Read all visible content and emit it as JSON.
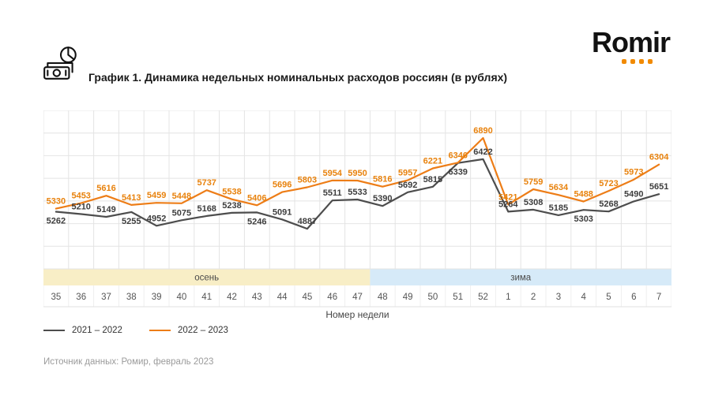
{
  "header": {
    "title": "График 1. Динамика недельных номинальных расходов россиян (в рублях)",
    "logo_text": "Romir",
    "logo_dot_color": "#F18A00"
  },
  "chart_data": {
    "type": "line",
    "title": "Динамика недельных номинальных расходов россиян (в рублях)",
    "x_label": "Номер недели",
    "categories": [
      "35",
      "36",
      "37",
      "38",
      "39",
      "40",
      "41",
      "42",
      "43",
      "44",
      "45",
      "46",
      "47",
      "48",
      "49",
      "50",
      "51",
      "52",
      "1",
      "2",
      "3",
      "4",
      "5",
      "6",
      "7"
    ],
    "series": [
      {
        "name": "2021 – 2022",
        "color": "#4D4D4D",
        "label_color": "#3d3d3d",
        "values": [
          5262,
          5210,
          5149,
          5255,
          4952,
          5075,
          5168,
          5238,
          5246,
          5091,
          4887,
          5511,
          5533,
          5390,
          5692,
          5815,
          6339,
          6422,
          5264,
          5308,
          5185,
          5303,
          5268,
          5490,
          5651
        ],
        "label_below_indices": [
          0,
          3,
          8,
          16,
          21
        ]
      },
      {
        "name": "2022 – 2023",
        "color": "#ED7D17",
        "label_color": "#E8820D",
        "values": [
          5330,
          5453,
          5616,
          5413,
          5459,
          5448,
          5737,
          5538,
          5406,
          5696,
          5803,
          5954,
          5950,
          5816,
          5957,
          6221,
          6346,
          6890,
          5421,
          5759,
          5634,
          5488,
          5723,
          5973,
          6304
        ],
        "label_below_indices": []
      }
    ],
    "bands": [
      {
        "label": "осень",
        "from_index": 0,
        "to_index": 12,
        "color": "#F8EEC6"
      },
      {
        "label": "зима",
        "from_index": 13,
        "to_index": 24,
        "color": "#D6EAF8"
      }
    ],
    "ylim": [
      4000,
      7500
    ],
    "grid": true,
    "legend_position": "bottom-left"
  },
  "footer": {
    "source": "Источник данных: Ромир, февраль 2023"
  }
}
